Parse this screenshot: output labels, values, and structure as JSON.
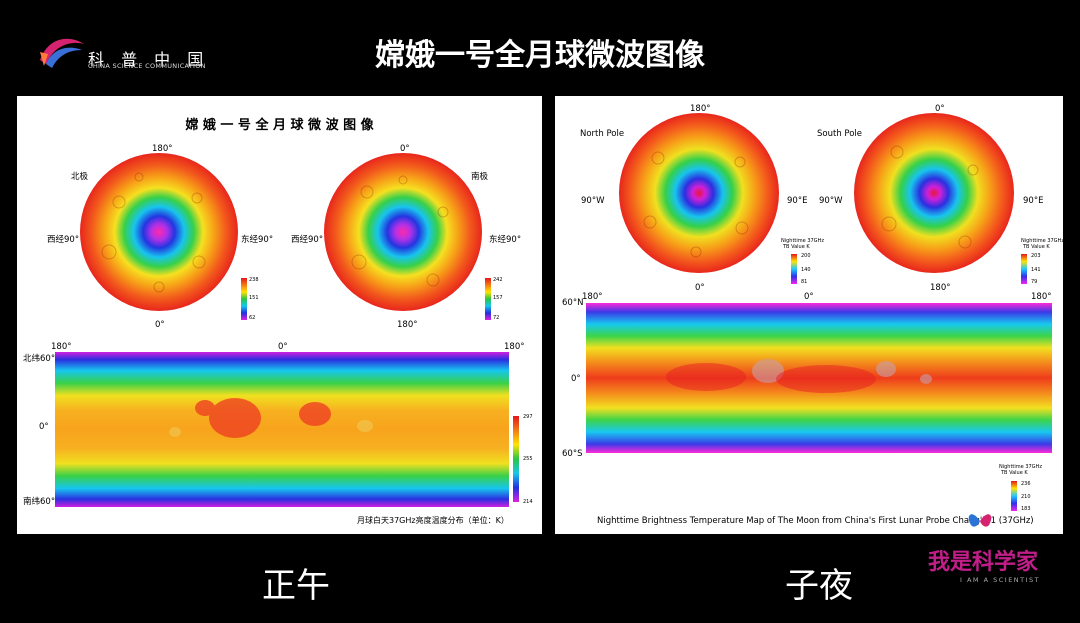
{
  "header": {
    "logo_text": "科 普 中 国",
    "logo_subtitle": "CHINA SCIENCE COMMUNICATION",
    "title": "嫦娥一号全月球微波图像"
  },
  "left_panel": {
    "title": "嫦 娥 一 号 全 月 球 微 波 图 像",
    "north_label": "北极",
    "south_label": "南极",
    "north_top": "180°",
    "north_bottom": "0°",
    "north_left": "西经90°",
    "north_right": "东经90°",
    "south_top": "0°",
    "south_bottom": "180°",
    "south_left": "西经90°",
    "south_right": "东经90°",
    "north_legend": [
      "238",
      "151",
      "62"
    ],
    "south_legend": [
      "242",
      "157",
      "72"
    ],
    "map_top_left": "180°",
    "map_top_center": "0°",
    "map_top_right": "180°",
    "map_lat_top": "北纬60°",
    "map_lat_mid": "0°",
    "map_lat_bottom": "南纬60°",
    "map_legend": [
      "297",
      "255",
      "214"
    ],
    "footnote": "月球白天37GHz亮度温度分布（单位：K）"
  },
  "right_panel": {
    "north_label": "North Pole",
    "south_label": "South Pole",
    "north_top": "180°",
    "north_bottom": "0°",
    "north_left": "90°W",
    "north_right": "90°E",
    "south_top": "0°",
    "south_bottom": "180°",
    "south_left": "90°W",
    "south_right": "90°E",
    "legend_title_1": "Nighttime 37GHz",
    "legend_title_2": "TB Value K",
    "north_legend": [
      "200",
      "140",
      "81"
    ],
    "south_legend": [
      "203",
      "141",
      "79"
    ],
    "map_top_left": "180°",
    "map_top_center": "0°",
    "map_top_right": "180°",
    "map_lat_top": "60°N",
    "map_lat_mid": "0°",
    "map_lat_bottom": "60°S",
    "map_legend": [
      "236",
      "210",
      "183"
    ],
    "footnote": "Nighttime Brightness Temperature Map of The Moon from China's First Lunar Probe Chang'E-1 (37GHz)"
  },
  "captions": {
    "left": "正午",
    "right": "子夜"
  },
  "brand": {
    "name": "我是科学家",
    "subtitle": "I AM A SCIENTIST"
  }
}
